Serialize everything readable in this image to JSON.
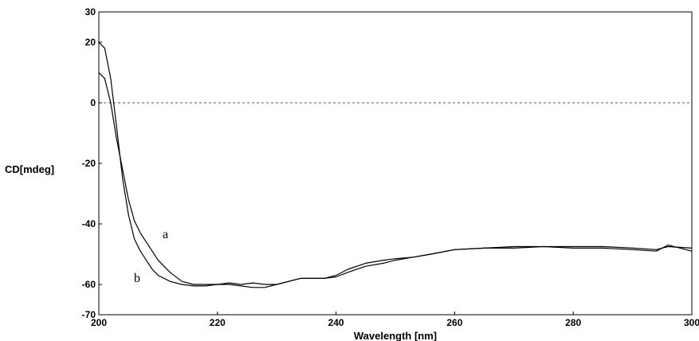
{
  "chart_data": {
    "type": "line",
    "xlabel": "Wavelength [nm]",
    "ylabel": "CD[mdeg]",
    "xlim": [
      200,
      300
    ],
    "ylim": [
      -70,
      30
    ],
    "x_ticks": [
      200,
      220,
      240,
      260,
      280,
      300
    ],
    "y_ticks": [
      30,
      20,
      0,
      -20,
      -40,
      -60,
      -70
    ],
    "grid": false,
    "reference_line": {
      "y": 0,
      "style": "dashed"
    },
    "series": [
      {
        "name": "a",
        "x": [
          200,
          201,
          202,
          203,
          204,
          205,
          206,
          207,
          208,
          209,
          210,
          212,
          214,
          216,
          218,
          220,
          222,
          224,
          226,
          228,
          230,
          232,
          234,
          236,
          238,
          240,
          242,
          245,
          248,
          250,
          253,
          256,
          260,
          265,
          270,
          275,
          280,
          285,
          290,
          294,
          296,
          300
        ],
        "y": [
          10,
          8,
          0,
          -12,
          -22,
          -32,
          -39,
          -43,
          -46,
          -49,
          -52,
          -56,
          -59,
          -60,
          -60,
          -60,
          -60,
          -60.5,
          -61,
          -61,
          -60,
          -59,
          -58,
          -58,
          -58,
          -57.5,
          -56,
          -54,
          -53,
          -52,
          -51,
          -50,
          -48.5,
          -48,
          -47.5,
          -47.5,
          -47.5,
          -47.5,
          -48,
          -48.5,
          -47.5,
          -48
        ]
      },
      {
        "name": "b",
        "x": [
          200,
          201,
          202,
          203,
          204,
          205,
          206,
          207,
          208,
          209,
          210,
          212,
          214,
          216,
          218,
          220,
          222,
          224,
          226,
          228,
          230,
          232,
          234,
          236,
          238,
          240,
          242,
          245,
          248,
          250,
          253,
          256,
          260,
          265,
          270,
          275,
          280,
          285,
          290,
          294,
          296,
          300
        ],
        "y": [
          20,
          18,
          8,
          -8,
          -25,
          -37,
          -45,
          -49,
          -52,
          -55,
          -57,
          -59,
          -60,
          -60.5,
          -60.5,
          -60,
          -59.5,
          -60,
          -59.5,
          -60,
          -60,
          -59,
          -58,
          -58,
          -58,
          -57,
          -55,
          -53,
          -52,
          -51.5,
          -51,
          -50,
          -48.5,
          -48,
          -48,
          -47.5,
          -48,
          -48,
          -48.5,
          -49,
          -47,
          -49
        ]
      }
    ]
  }
}
